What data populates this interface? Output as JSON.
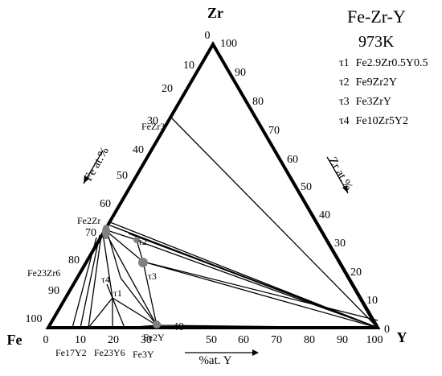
{
  "system": "Fe-Zr-Y",
  "temperature": "973K",
  "corners": {
    "top": "Zr",
    "left": "Fe",
    "right": "Y"
  },
  "axes": {
    "left_title": "Fe at.%",
    "right_title": "Zr at.%",
    "bottom_title": "%at. Y",
    "left_ticks": [
      "0",
      "10",
      "20",
      "30",
      "40",
      "50",
      "60",
      "70",
      "80",
      "90",
      "100"
    ],
    "right_ticks": [
      "100",
      "90",
      "80",
      "70",
      "60",
      "50",
      "40",
      "30",
      "20",
      "10",
      "0"
    ],
    "bottom_ticks": [
      "0",
      "10",
      "20",
      "30",
      "40",
      "50",
      "60",
      "70",
      "80",
      "90",
      "100"
    ]
  },
  "phase_labels": {
    "fezr3": "FeZr3",
    "fe2zr": "Fe2Zr",
    "fe23zr6": "Fe23Zr6",
    "fe17y2": "Fe17Y2",
    "fe23y6": "Fe23Y6",
    "fe3y": "Fe3Y",
    "fe2y": "Fe2Y",
    "t1": "τ1",
    "t2": "τ2",
    "t3": "τ3",
    "t4": "τ4"
  },
  "legend": [
    {
      "tag": "τ1",
      "formula": "Fe2.9Zr0.5Y0.5"
    },
    {
      "tag": "τ2",
      "formula": "Fe9Zr2Y"
    },
    {
      "tag": "τ3",
      "formula": "Fe3ZrY"
    },
    {
      "tag": "τ4",
      "formula": "Fe10Zr5Y2"
    }
  ],
  "colors": {
    "line": "#000000",
    "marker": "#808080"
  }
}
